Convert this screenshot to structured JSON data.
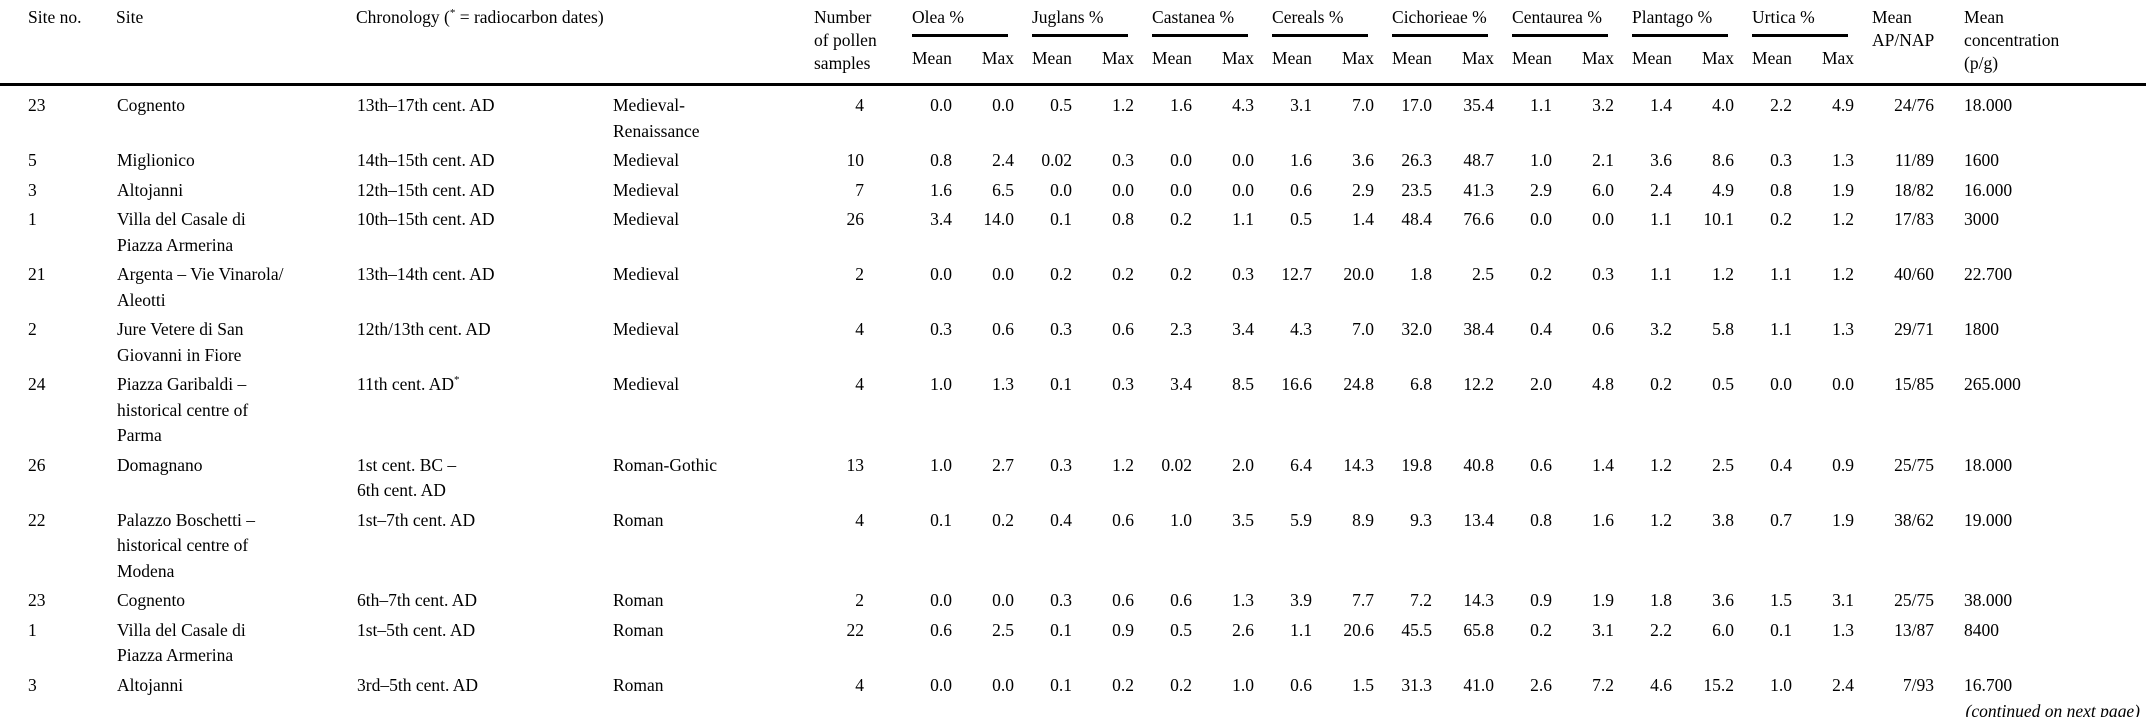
{
  "table": {
    "columns": {
      "site_no": "Site no.",
      "site": "Site",
      "chronology": "Chronology (* = radiocarbon dates)",
      "period": "",
      "n_samples": "Number\nof pollen\nsamples",
      "groups": [
        {
          "label": "Olea %"
        },
        {
          "label": "Juglans %"
        },
        {
          "label": "Castanea %"
        },
        {
          "label": "Cereals %"
        },
        {
          "label": "Cichorieae %"
        },
        {
          "label": "Centaurea %"
        },
        {
          "label": "Plantago %"
        },
        {
          "label": "Urtica %"
        }
      ],
      "sub_mean": "Mean",
      "sub_max": "Max",
      "ap_nap": "Mean\nAP/NAP",
      "concentration": "Mean\nconcentration\n(p/g)"
    },
    "rows": [
      {
        "site_no": "23",
        "site": "Cognento",
        "chronology": "13th–17th cent. AD",
        "period": "Medieval-\nRenaissance",
        "n_samples": "4",
        "values": [
          "0.0",
          "0.0",
          "0.5",
          "1.2",
          "1.6",
          "4.3",
          "3.1",
          "7.0",
          "17.0",
          "35.4",
          "1.1",
          "3.2",
          "1.4",
          "4.0",
          "2.2",
          "4.9"
        ],
        "ap_nap": "24/76",
        "concentration": "18.000"
      },
      {
        "site_no": "5",
        "site": "Miglionico",
        "chronology": "14th–15th cent. AD",
        "period": "Medieval",
        "n_samples": "10",
        "values": [
          "0.8",
          "2.4",
          "0.02",
          "0.3",
          "0.0",
          "0.0",
          "1.6",
          "3.6",
          "26.3",
          "48.7",
          "1.0",
          "2.1",
          "3.6",
          "8.6",
          "0.3",
          "1.3"
        ],
        "ap_nap": "11/89",
        "concentration": "1600"
      },
      {
        "site_no": "3",
        "site": "Altojanni",
        "chronology": "12th–15th cent. AD",
        "period": "Medieval",
        "n_samples": "7",
        "values": [
          "1.6",
          "6.5",
          "0.0",
          "0.0",
          "0.0",
          "0.0",
          "0.6",
          "2.9",
          "23.5",
          "41.3",
          "2.9",
          "6.0",
          "2.4",
          "4.9",
          "0.8",
          "1.9"
        ],
        "ap_nap": "18/82",
        "concentration": "16.000"
      },
      {
        "site_no": "1",
        "site": "Villa del Casale di\nPiazza Armerina",
        "chronology": "10th–15th cent. AD",
        "period": "Medieval",
        "n_samples": "26",
        "values": [
          "3.4",
          "14.0",
          "0.1",
          "0.8",
          "0.2",
          "1.1",
          "0.5",
          "1.4",
          "48.4",
          "76.6",
          "0.0",
          "0.0",
          "1.1",
          "10.1",
          "0.2",
          "1.2"
        ],
        "ap_nap": "17/83",
        "concentration": "3000"
      },
      {
        "site_no": "21",
        "site": "Argenta – Vie Vinarola/\nAleotti",
        "chronology": "13th–14th cent. AD",
        "period": "Medieval",
        "n_samples": "2",
        "values": [
          "0.0",
          "0.0",
          "0.2",
          "0.2",
          "0.2",
          "0.3",
          "12.7",
          "20.0",
          "1.8",
          "2.5",
          "0.2",
          "0.3",
          "1.1",
          "1.2",
          "1.1",
          "1.2"
        ],
        "ap_nap": "40/60",
        "concentration": "22.700"
      },
      {
        "site_no": "2",
        "site": "Jure Vetere di San\nGiovanni in Fiore",
        "chronology": "12th/13th cent. AD",
        "period": "Medieval",
        "n_samples": "4",
        "values": [
          "0.3",
          "0.6",
          "0.3",
          "0.6",
          "2.3",
          "3.4",
          "4.3",
          "7.0",
          "32.0",
          "38.4",
          "0.4",
          "0.6",
          "3.2",
          "5.8",
          "1.1",
          "1.3"
        ],
        "ap_nap": "29/71",
        "concentration": "1800"
      },
      {
        "site_no": "24",
        "site": "Piazza Garibaldi –\nhistorical centre of\nParma",
        "chronology": "11th cent. AD*",
        "period": "Medieval",
        "n_samples": "4",
        "values": [
          "1.0",
          "1.3",
          "0.1",
          "0.3",
          "3.4",
          "8.5",
          "16.6",
          "24.8",
          "6.8",
          "12.2",
          "2.0",
          "4.8",
          "0.2",
          "0.5",
          "0.0",
          "0.0"
        ],
        "ap_nap": "15/85",
        "concentration": "265.000"
      },
      {
        "site_no": "26",
        "site": "Domagnano",
        "chronology": "1st cent. BC –\n6th cent. AD",
        "period": "Roman-Gothic",
        "n_samples": "13",
        "values": [
          "1.0",
          "2.7",
          "0.3",
          "1.2",
          "0.02",
          "2.0",
          "6.4",
          "14.3",
          "19.8",
          "40.8",
          "0.6",
          "1.4",
          "1.2",
          "2.5",
          "0.4",
          "0.9"
        ],
        "ap_nap": "25/75",
        "concentration": "18.000"
      },
      {
        "site_no": "22",
        "site": "Palazzo Boschetti –\nhistorical centre of\nModena",
        "chronology": "1st–7th cent. AD",
        "period": "Roman",
        "n_samples": "4",
        "values": [
          "0.1",
          "0.2",
          "0.4",
          "0.6",
          "1.0",
          "3.5",
          "5.9",
          "8.9",
          "9.3",
          "13.4",
          "0.8",
          "1.6",
          "1.2",
          "3.8",
          "0.7",
          "1.9"
        ],
        "ap_nap": "38/62",
        "concentration": "19.000"
      },
      {
        "site_no": "23",
        "site": "Cognento",
        "chronology": "6th–7th cent. AD",
        "period": "Roman",
        "n_samples": "2",
        "values": [
          "0.0",
          "0.0",
          "0.3",
          "0.6",
          "0.6",
          "1.3",
          "3.9",
          "7.7",
          "7.2",
          "14.3",
          "0.9",
          "1.9",
          "1.8",
          "3.6",
          "1.5",
          "3.1"
        ],
        "ap_nap": "25/75",
        "concentration": "38.000"
      },
      {
        "site_no": "1",
        "site": "Villa del Casale di\nPiazza Armerina",
        "chronology": "1st–5th cent. AD",
        "period": "Roman",
        "n_samples": "22",
        "values": [
          "0.6",
          "2.5",
          "0.1",
          "0.9",
          "0.5",
          "2.6",
          "1.1",
          "20.6",
          "45.5",
          "65.8",
          "0.2",
          "3.1",
          "2.2",
          "6.0",
          "0.1",
          "1.3"
        ],
        "ap_nap": "13/87",
        "concentration": "8400"
      },
      {
        "site_no": "3",
        "site": "Altojanni",
        "chronology": "3rd–5th cent. AD",
        "period": "Roman",
        "n_samples": "4",
        "values": [
          "0.0",
          "0.0",
          "0.1",
          "0.2",
          "0.2",
          "1.0",
          "0.6",
          "1.5",
          "31.3",
          "41.0",
          "2.6",
          "7.2",
          "4.6",
          "15.2",
          "1.0",
          "2.4"
        ],
        "ap_nap": "7/93",
        "concentration": "16.700"
      }
    ],
    "footer_note": "(continued on next page)"
  }
}
